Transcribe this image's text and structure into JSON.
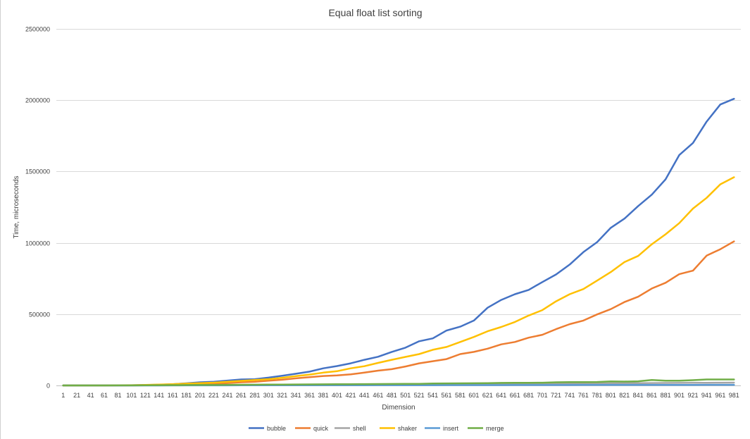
{
  "chart_data": {
    "type": "line",
    "title": "Equal float list sorting",
    "xlabel": "Dimension",
    "ylabel": "Time, microseconds",
    "ylim": [
      0,
      2500000
    ],
    "yticks": [
      0,
      500000,
      1000000,
      1500000,
      2000000,
      2500000
    ],
    "grid": true,
    "legend": "bottom",
    "x": [
      1,
      21,
      41,
      61,
      81,
      101,
      121,
      141,
      161,
      181,
      201,
      221,
      241,
      261,
      281,
      301,
      321,
      341,
      361,
      381,
      401,
      421,
      441,
      461,
      481,
      501,
      521,
      541,
      561,
      581,
      601,
      621,
      641,
      661,
      681,
      701,
      721,
      741,
      761,
      781,
      801,
      821,
      841,
      861,
      881,
      901,
      921,
      941,
      961,
      981
    ],
    "series": [
      {
        "name": "bubble",
        "color": "#4472c4",
        "values": [
          0,
          0,
          0,
          0,
          500,
          1500,
          3000,
          5000,
          9000,
          15000,
          22000,
          26000,
          34000,
          42000,
          44000,
          55000,
          68000,
          82000,
          97000,
          120000,
          136000,
          155000,
          180000,
          201000,
          235000,
          265000,
          310000,
          330000,
          385000,
          412000,
          455000,
          545000,
          600000,
          640000,
          670000,
          725000,
          778000,
          848000,
          935000,
          1005000,
          1105000,
          1170000,
          1258000,
          1338000,
          1445000,
          1615000,
          1700000,
          1850000,
          1970000,
          2010000
        ]
      },
      {
        "name": "quick",
        "color": "#ed7d31",
        "values": [
          0,
          0,
          0,
          0,
          200,
          600,
          1200,
          2500,
          5000,
          7500,
          10000,
          13000,
          17000,
          22000,
          26000,
          33000,
          40000,
          50000,
          58000,
          66000,
          70000,
          78000,
          90000,
          104000,
          114000,
          133000,
          155000,
          170000,
          185000,
          220000,
          235000,
          258000,
          288000,
          305000,
          335000,
          355000,
          395000,
          430000,
          455000,
          498000,
          535000,
          585000,
          622000,
          680000,
          720000,
          780000,
          805000,
          910000,
          955000,
          1010000
        ]
      },
      {
        "name": "shell",
        "color": "#a5a5a5",
        "values": [
          0,
          0,
          0,
          0,
          100,
          200,
          300,
          500,
          700,
          1000,
          1200,
          1500,
          1800,
          2200,
          2600,
          3000,
          3500,
          4000,
          4500,
          5000,
          5500,
          6000,
          6500,
          7000,
          7500,
          8000,
          8500,
          9000,
          9500,
          10000,
          10500,
          11000,
          11500,
          12000,
          12500,
          13000,
          13500,
          14000,
          14500,
          15000,
          15500,
          16000,
          16500,
          17000,
          17500,
          18000,
          18500,
          19000,
          19500,
          20000
        ]
      },
      {
        "name": "shaker",
        "color": "#ffc000",
        "values": [
          0,
          0,
          0,
          0,
          800,
          2000,
          4000,
          6000,
          9000,
          13000,
          16000,
          20000,
          26000,
          32000,
          38000,
          44000,
          54000,
          65000,
          76000,
          90000,
          100000,
          120000,
          135000,
          158000,
          180000,
          200000,
          220000,
          250000,
          270000,
          305000,
          340000,
          380000,
          410000,
          445000,
          490000,
          528000,
          590000,
          640000,
          676000,
          735000,
          795000,
          865000,
          908000,
          990000,
          1060000,
          1138000,
          1240000,
          1315000,
          1410000,
          1460000
        ]
      },
      {
        "name": "insert",
        "color": "#5b9bd5",
        "values": [
          0,
          0,
          0,
          0,
          50,
          100,
          150,
          200,
          300,
          400,
          500,
          600,
          700,
          800,
          900,
          1000,
          1100,
          1200,
          1300,
          1400,
          1500,
          1600,
          1700,
          1800,
          1900,
          2000,
          2100,
          2200,
          2300,
          2400,
          2500,
          2600,
          2700,
          2800,
          2900,
          3000,
          3100,
          3200,
          3300,
          3400,
          3500,
          3600,
          3700,
          3800,
          3900,
          4000,
          4100,
          4200,
          4300,
          4400
        ]
      },
      {
        "name": "merge",
        "color": "#70ad47",
        "values": [
          0,
          0,
          0,
          0,
          300,
          700,
          1200,
          1800,
          2500,
          3000,
          3500,
          4000,
          4500,
          5000,
          5500,
          6000,
          6500,
          7000,
          7500,
          8000,
          8500,
          9000,
          9500,
          10000,
          10500,
          11000,
          11500,
          14000,
          14500,
          15000,
          15500,
          16000,
          18000,
          18500,
          19000,
          19500,
          22000,
          23000,
          23500,
          24000,
          28000,
          27000,
          29000,
          38000,
          33000,
          33000,
          37000,
          42000,
          42000,
          42000
        ]
      }
    ]
  }
}
